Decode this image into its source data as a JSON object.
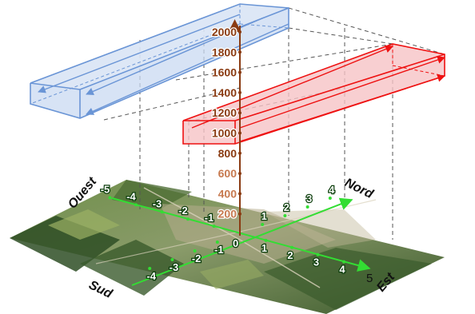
{
  "diagram": {
    "altitude_ticks": [
      "2000",
      "1800",
      "1600",
      "1400",
      "1200",
      "1000",
      "800",
      "600",
      "400",
      "200"
    ],
    "altitude_origin": "0",
    "west_east_axis": {
      "negative_labels": [
        "-5",
        "-4",
        "-3",
        "-2",
        "-1"
      ],
      "positive_labels": [
        "1",
        "2",
        "3",
        "4"
      ],
      "end_label": "5"
    },
    "south_north_axis": {
      "negative_labels": [
        "-4",
        "-3",
        "-2",
        "-1"
      ],
      "positive_labels": [
        "1",
        "2",
        "3",
        "4"
      ]
    },
    "directions": {
      "west": "Ouest",
      "north": "Nord",
      "south": "Sud",
      "east": "Est"
    },
    "colors": {
      "altitude": "#8a3b12",
      "altitude_tick_lower": "#c77a50",
      "grid": "#33dd33",
      "grid_text": "#ffffff",
      "grid_text_stroke": "#0b3d0b",
      "blue_box": "#6a95d6",
      "blue_fill": "#c9d9f2",
      "red_box": "#ee1111",
      "red_fill": "#f6c3c6",
      "map_dark": "#34522a",
      "map_light": "#7d9b55"
    }
  }
}
